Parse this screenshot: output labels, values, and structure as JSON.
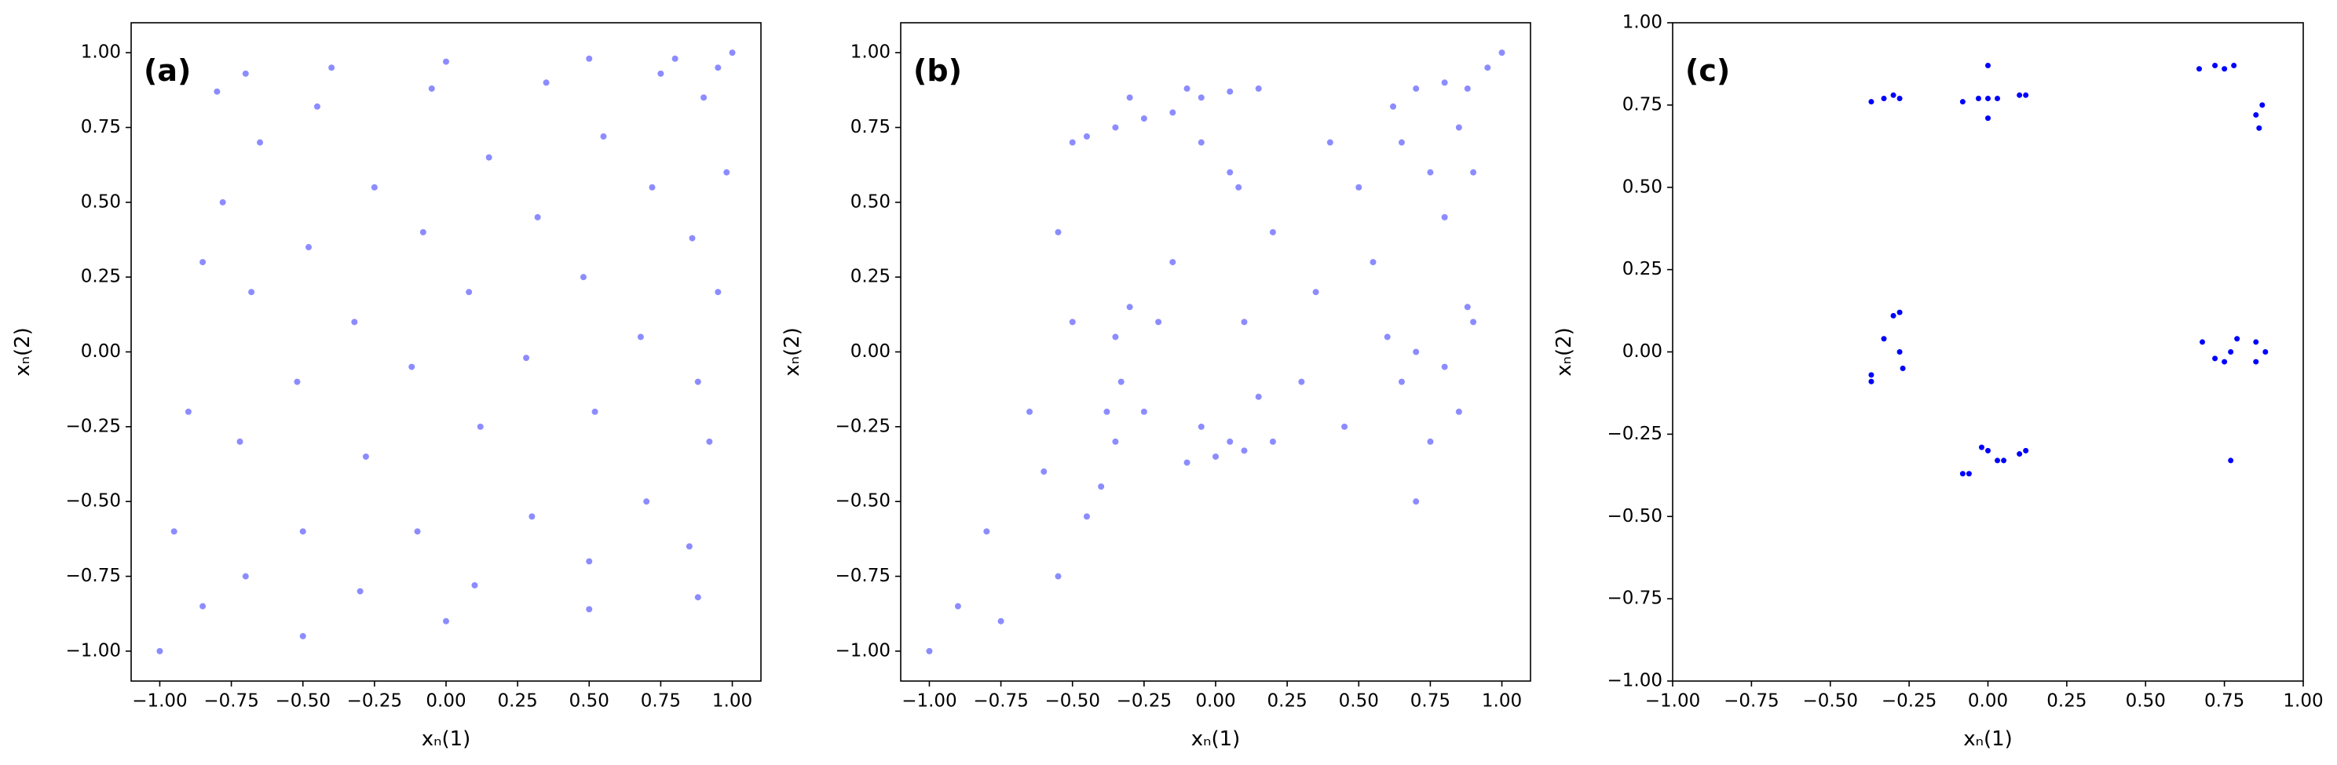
{
  "chart_data": [
    {
      "type": "scatter",
      "title": "(a)",
      "x_label": "xₙ(1)",
      "y_label": "xₙ(2)",
      "color": "#0000ff",
      "xlim": [
        -1.1,
        1.1
      ],
      "ylim": [
        -1.1,
        1.1
      ],
      "xticks": [
        {
          "value": -1,
          "label": "−1.00"
        },
        {
          "value": -0.75,
          "label": "−0.75"
        },
        {
          "value": -0.5,
          "label": "−0.50"
        },
        {
          "value": -0.25,
          "label": "−0.25"
        },
        {
          "value": 0,
          "label": "0.00"
        },
        {
          "value": 0.25,
          "label": "0.25"
        },
        {
          "value": 0.5,
          "label": "0.50"
        },
        {
          "value": 0.75,
          "label": "0.75"
        },
        {
          "value": 1,
          "label": "1.00"
        }
      ],
      "yticks": [
        {
          "value": -1,
          "label": "−1.00"
        },
        {
          "value": -0.75,
          "label": "−0.75"
        },
        {
          "value": -0.5,
          "label": "−0.50"
        },
        {
          "value": -0.25,
          "label": "−0.25"
        },
        {
          "value": 0,
          "label": "0.00"
        },
        {
          "value": 0.25,
          "label": "0.25"
        },
        {
          "value": 0.5,
          "label": "0.50"
        },
        {
          "value": 0.75,
          "label": "0.75"
        },
        {
          "value": 1,
          "label": "1.00"
        }
      ],
      "x": [
        -1,
        -0.95,
        -0.9,
        -0.85,
        -0.8,
        -0.7,
        -0.4,
        0,
        0.5,
        1,
        0.98,
        0.95,
        0.92,
        0.88,
        0.5,
        0,
        -0.5,
        -0.7,
        -0.72,
        -0.68,
        -0.65,
        -0.5,
        -0.52,
        -0.48,
        -0.45,
        -0.3,
        -0.28,
        -0.32,
        -0.25,
        -0.1,
        -0.12,
        -0.08,
        -0.05,
        0.1,
        0.12,
        0.08,
        0.15,
        0.3,
        0.28,
        0.32,
        0.35,
        0.5,
        0.52,
        0.48,
        0.55,
        0.7,
        0.68,
        0.72,
        0.75,
        0.85,
        0.88,
        0.86,
        0.9,
        0.95,
        -0.85,
        -0.78,
        0.8
      ],
      "values": [
        -1,
        -0.6,
        -0.2,
        0.3,
        0.87,
        0.93,
        0.95,
        0.97,
        0.98,
        1,
        0.6,
        0.2,
        -0.3,
        -0.82,
        -0.86,
        -0.9,
        -0.95,
        -0.75,
        -0.3,
        0.2,
        0.7,
        -0.6,
        -0.1,
        0.35,
        0.82,
        -0.8,
        -0.35,
        0.1,
        0.55,
        -0.6,
        -0.05,
        0.4,
        0.88,
        -0.78,
        -0.25,
        0.2,
        0.65,
        -0.55,
        -0.02,
        0.45,
        0.9,
        -0.7,
        -0.2,
        0.25,
        0.72,
        -0.5,
        0.05,
        0.55,
        0.93,
        -0.65,
        -0.1,
        0.38,
        0.85,
        0.95,
        -0.85,
        0.5,
        0.98
      ]
    },
    {
      "type": "scatter",
      "title": "(b)",
      "x_label": "xₙ(1)",
      "y_label": "xₙ(2)",
      "color": "#0000ff",
      "xlim": [
        -1.1,
        1.1
      ],
      "ylim": [
        -1.1,
        1.1
      ],
      "xticks": [
        {
          "value": -1,
          "label": "−1.00"
        },
        {
          "value": -0.75,
          "label": "−0.75"
        },
        {
          "value": -0.5,
          "label": "−0.50"
        },
        {
          "value": -0.25,
          "label": "−0.25"
        },
        {
          "value": 0,
          "label": "0.00"
        },
        {
          "value": 0.25,
          "label": "0.25"
        },
        {
          "value": 0.5,
          "label": "0.50"
        },
        {
          "value": 0.75,
          "label": "0.75"
        },
        {
          "value": 1,
          "label": "1.00"
        }
      ],
      "yticks": [
        {
          "value": -1,
          "label": "−1.00"
        },
        {
          "value": -0.75,
          "label": "−0.75"
        },
        {
          "value": -0.5,
          "label": "−0.50"
        },
        {
          "value": -0.25,
          "label": "−0.25"
        },
        {
          "value": 0,
          "label": "0.00"
        },
        {
          "value": 0.25,
          "label": "0.25"
        },
        {
          "value": 0.5,
          "label": "0.50"
        },
        {
          "value": 0.75,
          "label": "0.75"
        },
        {
          "value": 1,
          "label": "1.00"
        }
      ],
      "x": [
        -1,
        -0.9,
        -0.8,
        -0.75,
        -0.6,
        -0.55,
        -0.65,
        -0.5,
        -0.45,
        -0.55,
        -0.5,
        -0.45,
        -0.35,
        -0.25,
        -0.15,
        -0.05,
        0.05,
        0.15,
        -0.3,
        -0.1,
        0.05,
        0.08,
        -0.05,
        0.62,
        0.7,
        0.8,
        0.88,
        0.65,
        0.75,
        0.85,
        0.8,
        0.9,
        1,
        0.95,
        -0.4,
        -0.35,
        -0.33,
        -0.35,
        -0.3,
        -0.25,
        -0.38,
        -0.2,
        -0.1,
        0,
        0.1,
        0.2,
        0.05,
        -0.05,
        0.6,
        0.7,
        0.8,
        0.9,
        0.75,
        0.7,
        0.85,
        0.65,
        0.88,
        0.2,
        0.35,
        0.5,
        0.1,
        0.3,
        0.45,
        0.4,
        0.15,
        -0.15,
        0.55
      ],
      "values": [
        -1,
        -0.85,
        -0.6,
        -0.9,
        -0.4,
        -0.75,
        -0.2,
        0.1,
        -0.55,
        0.4,
        0.7,
        0.72,
        0.75,
        0.78,
        0.8,
        0.85,
        0.87,
        0.88,
        0.85,
        0.88,
        0.6,
        0.55,
        0.7,
        0.82,
        0.88,
        0.9,
        0.88,
        0.7,
        0.6,
        0.75,
        0.45,
        0.6,
        1,
        0.95,
        -0.45,
        -0.3,
        -0.1,
        0.05,
        0.15,
        -0.2,
        -0.2,
        0.1,
        -0.37,
        -0.35,
        -0.33,
        -0.3,
        -0.3,
        -0.25,
        0.05,
        0,
        -0.05,
        0.1,
        -0.3,
        -0.5,
        -0.2,
        -0.1,
        0.15,
        0.4,
        0.2,
        0.55,
        0.1,
        -0.1,
        -0.25,
        0.7,
        -0.15,
        0.3,
        0.3
      ]
    },
    {
      "type": "scatter",
      "title": "(c)",
      "x_label": "xₙ(1)",
      "y_label": "xₙ(2)",
      "color": "#0000ff",
      "xlim": [
        -1,
        1
      ],
      "ylim": [
        -1,
        1
      ],
      "xticks": [
        {
          "value": -1,
          "label": "−1.00"
        },
        {
          "value": -0.75,
          "label": "−0.75"
        },
        {
          "value": -0.5,
          "label": "−0.50"
        },
        {
          "value": -0.25,
          "label": "−0.25"
        },
        {
          "value": 0,
          "label": "0.00"
        },
        {
          "value": 0.25,
          "label": "0.25"
        },
        {
          "value": 0.5,
          "label": "0.50"
        },
        {
          "value": 0.75,
          "label": "0.75"
        },
        {
          "value": 1,
          "label": "1.00"
        }
      ],
      "yticks": [
        {
          "value": -1,
          "label": "−1.00"
        },
        {
          "value": -0.75,
          "label": "−0.75"
        },
        {
          "value": -0.5,
          "label": "−0.50"
        },
        {
          "value": -0.25,
          "label": "−0.25"
        },
        {
          "value": 0,
          "label": "0.00"
        },
        {
          "value": 0.25,
          "label": "0.25"
        },
        {
          "value": 0.5,
          "label": "0.50"
        },
        {
          "value": 0.75,
          "label": "0.75"
        },
        {
          "value": 1,
          "label": "1.00"
        }
      ],
      "x": [
        -0.37,
        -0.33,
        -0.3,
        -0.28,
        -0.08,
        -0.03,
        0,
        0.03,
        0.1,
        0.12,
        0,
        0,
        0.67,
        0.72,
        0.75,
        0.78,
        0.85,
        0.87,
        0.86,
        -0.3,
        -0.28,
        -0.33,
        -0.28,
        -0.27,
        -0.37,
        -0.37,
        0.68,
        0.72,
        0.75,
        0.77,
        0.79,
        0.85,
        0.88,
        0.85,
        -0.08,
        -0.06,
        -0.02,
        0,
        0.03,
        0.05,
        0.1,
        0.12,
        0.77
      ],
      "values": [
        0.76,
        0.77,
        0.78,
        0.77,
        0.76,
        0.77,
        0.77,
        0.77,
        0.78,
        0.78,
        0.71,
        0.87,
        0.86,
        0.87,
        0.86,
        0.87,
        0.72,
        0.75,
        0.68,
        0.11,
        0.12,
        0.04,
        0,
        -0.05,
        -0.07,
        -0.09,
        0.03,
        -0.02,
        -0.03,
        0,
        0.04,
        0.03,
        0,
        -0.03,
        -0.37,
        -0.37,
        -0.29,
        -0.3,
        -0.33,
        -0.33,
        -0.31,
        -0.3,
        -0.33
      ]
    }
  ]
}
